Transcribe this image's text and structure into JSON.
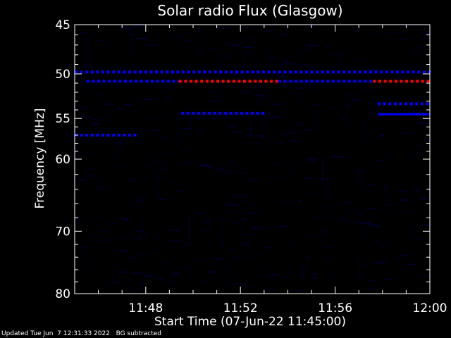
{
  "chart_data": {
    "type": "heatmap",
    "title": "Solar radio Flux (Glasgow)",
    "xlabel": "Start Time (07-Jun-22 11:45:00)",
    "ylabel": "Frequency [MHz]",
    "x_unit": "time (HH:MM)",
    "y_unit": "MHz",
    "xlim": [
      "11:45:00",
      "12:00:00"
    ],
    "ylim": [
      45,
      80
    ],
    "y_scale": "log",
    "y_inverted": true,
    "x_ticks": [
      "11:48",
      "11:52",
      "11:56",
      "12:00"
    ],
    "x_tick_minutes": [
      3,
      7,
      11,
      15
    ],
    "y_ticks": [
      45,
      50,
      55,
      60,
      70,
      80
    ],
    "y_minor_ticks": [
      46,
      47,
      48,
      49,
      51,
      52,
      53,
      54,
      56,
      57,
      58,
      59,
      62,
      64,
      66,
      68,
      72,
      74,
      76,
      78
    ],
    "background": "#000000",
    "colors": {
      "low": "#000020",
      "mid": "#0000ff",
      "high": "#ff0000"
    },
    "bands": [
      {
        "freq": 49.8,
        "t_start": 0.0,
        "t_end": 15.0,
        "level": "mid",
        "style": "dashed"
      },
      {
        "freq": 50.8,
        "t_start": 0.5,
        "t_end": 4.4,
        "level": "mid",
        "style": "dashed"
      },
      {
        "freq": 50.8,
        "t_start": 4.4,
        "t_end": 8.6,
        "level": "high",
        "style": "dashed"
      },
      {
        "freq": 50.8,
        "t_start": 8.6,
        "t_end": 12.6,
        "level": "mid",
        "style": "dashed"
      },
      {
        "freq": 50.8,
        "t_start": 12.6,
        "t_end": 15.0,
        "level": "high",
        "style": "dashed"
      },
      {
        "freq": 54.4,
        "t_start": 4.5,
        "t_end": 8.0,
        "level": "mid",
        "style": "dashed"
      },
      {
        "freq": 54.5,
        "t_start": 12.8,
        "t_end": 15.0,
        "level": "mid",
        "style": "solid"
      },
      {
        "freq": 53.3,
        "t_start": 12.8,
        "t_end": 15.0,
        "level": "mid",
        "style": "dashed"
      },
      {
        "freq": 57.0,
        "t_start": 0.0,
        "t_end": 2.6,
        "level": "mid",
        "style": "dashed"
      }
    ]
  },
  "footer": {
    "updated": "Updated Tue Jun  7 12:31:33 2022",
    "bg_note": "BG subtracted"
  }
}
